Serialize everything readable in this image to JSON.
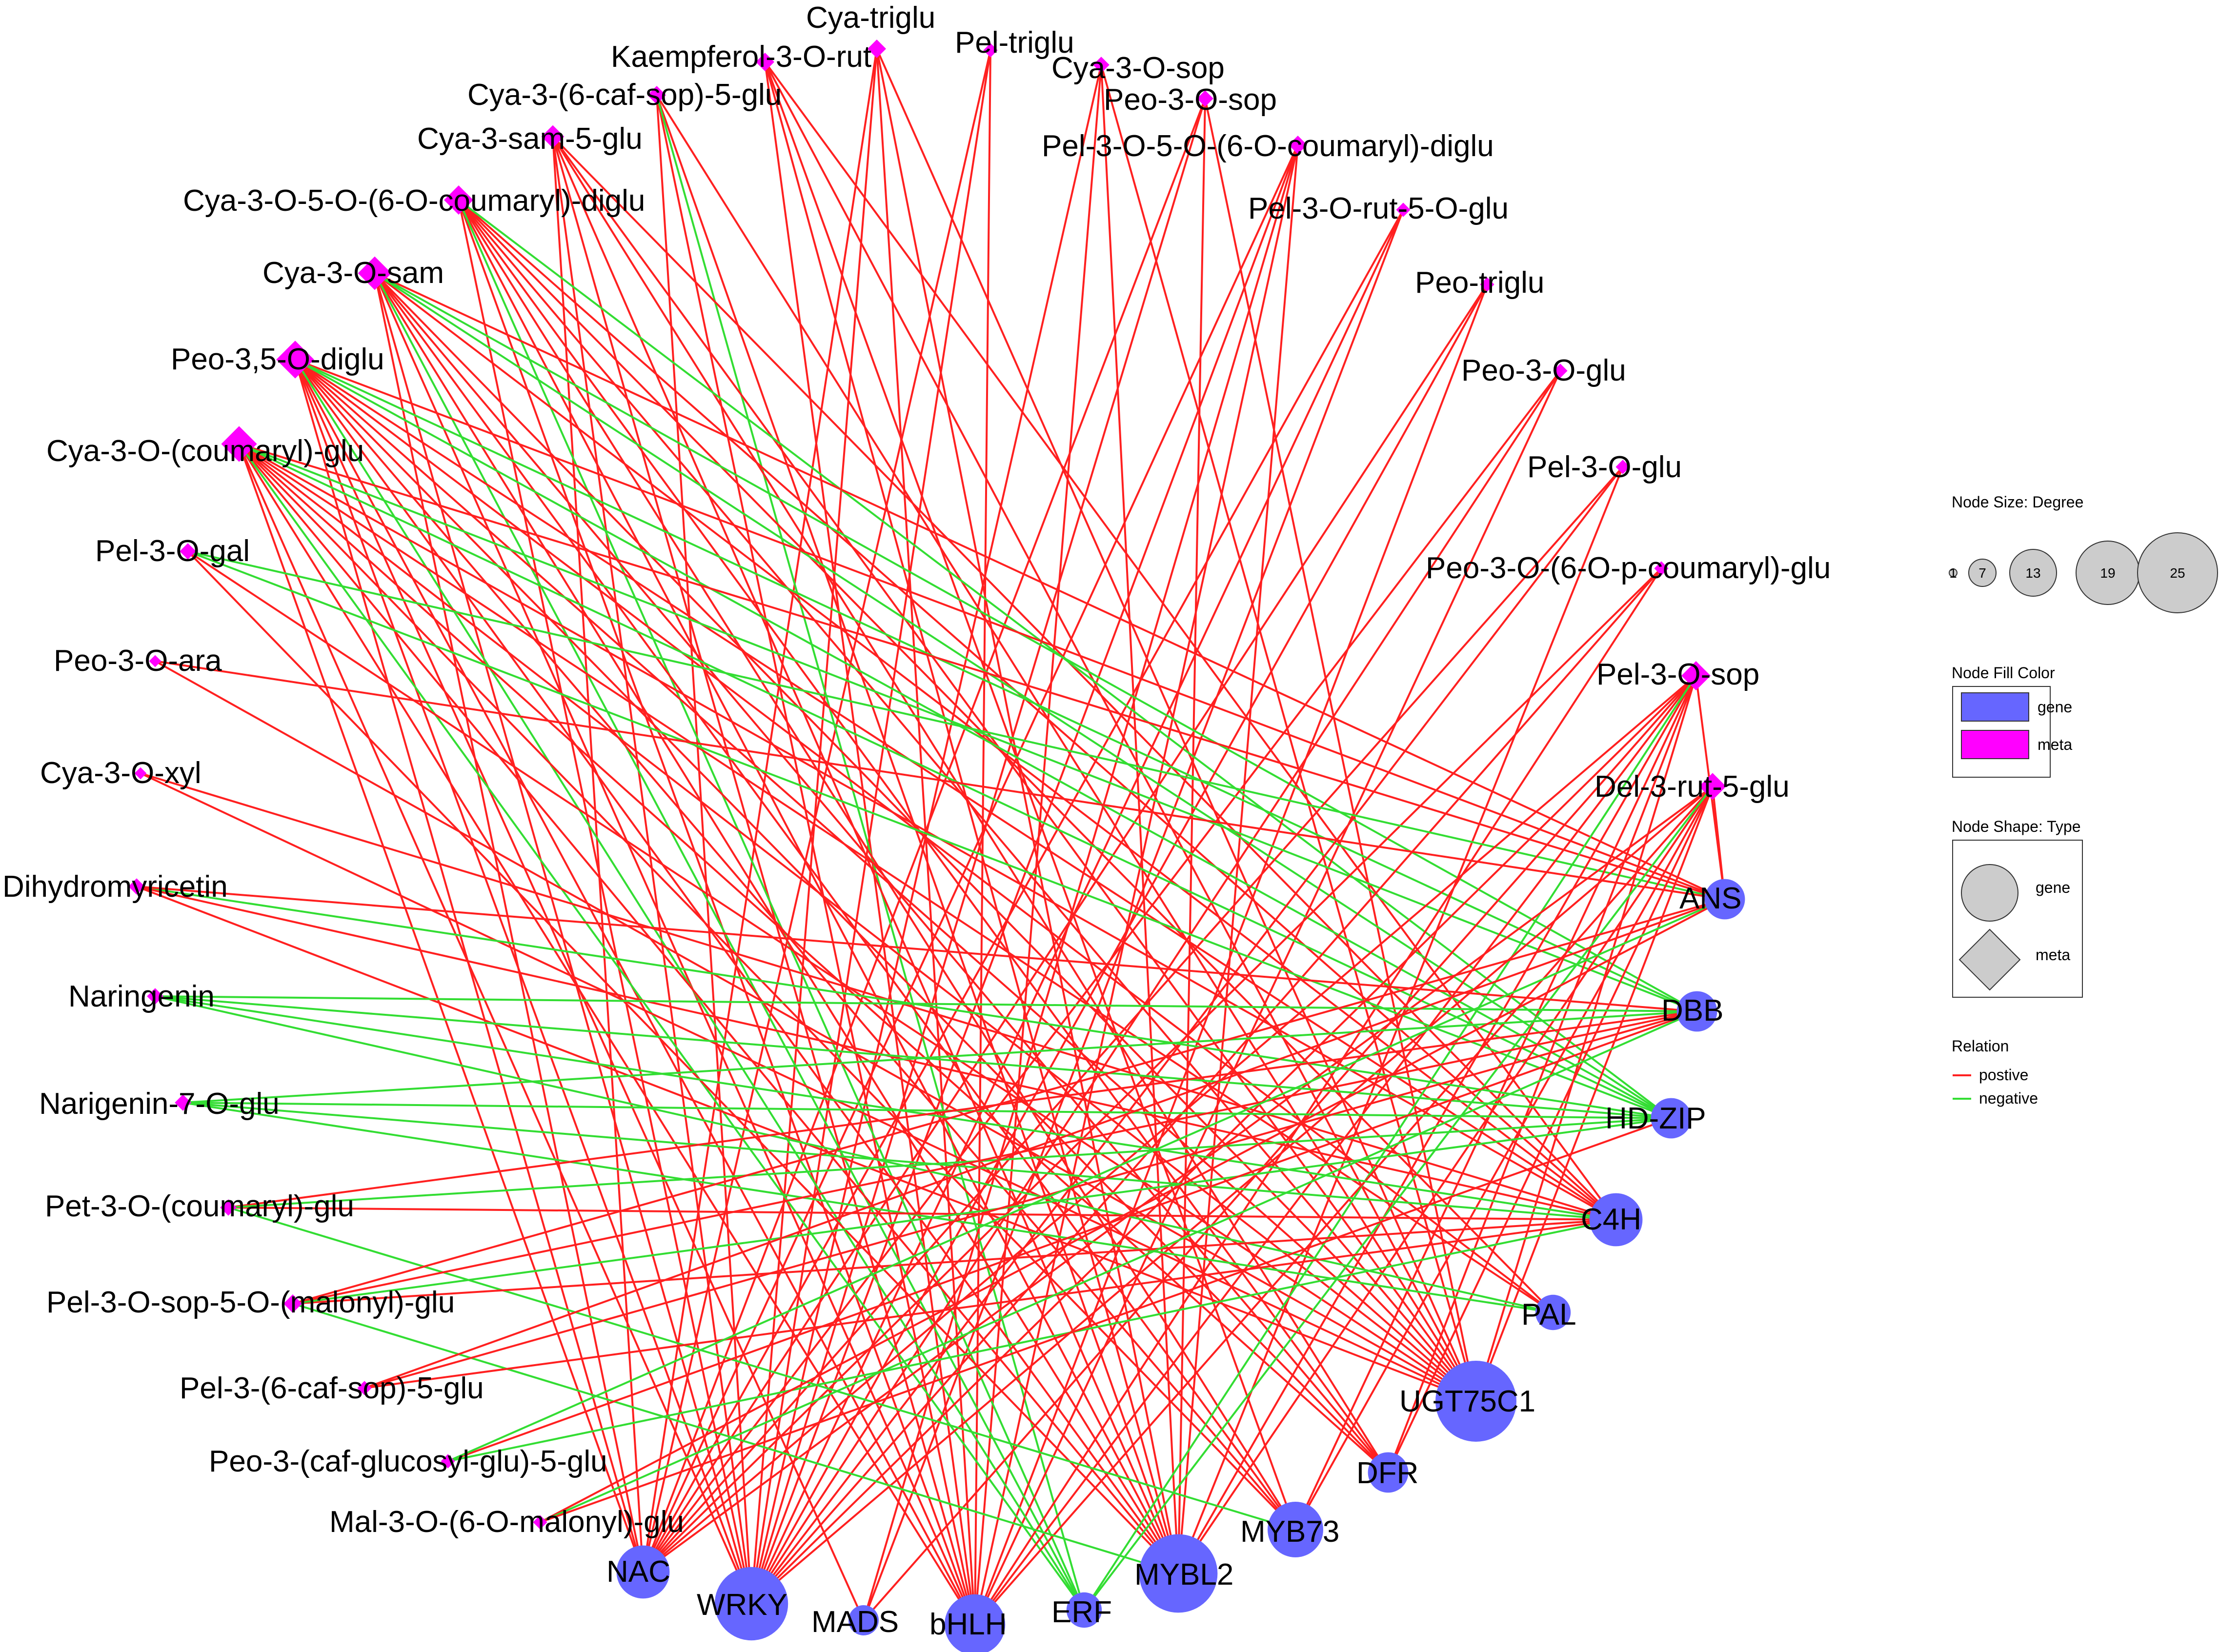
{
  "colors": {
    "gene": "#6666ff",
    "meta": "#ff00ff",
    "positive": "#ff2020",
    "negative": "#33dd33",
    "size_circle": "#cccccc"
  },
  "genes": [
    {
      "id": "ANS",
      "label": "ANS",
      "degree": 9
    },
    {
      "id": "DBB",
      "label": "DBB",
      "degree": 9
    },
    {
      "id": "HDZIP",
      "label": "HD-ZIP",
      "degree": 9
    },
    {
      "id": "C4H",
      "label": "C4H",
      "degree": 14
    },
    {
      "id": "PAL",
      "label": "PAL",
      "degree": 7
    },
    {
      "id": "UGT75C1",
      "label": "UGT75C1",
      "degree": 25
    },
    {
      "id": "DFR",
      "label": "DFR",
      "degree": 9
    },
    {
      "id": "MYB73",
      "label": "MYB73",
      "degree": 15
    },
    {
      "id": "MYBL2",
      "label": "MYBL2",
      "degree": 24
    },
    {
      "id": "ERF",
      "label": "ERF",
      "degree": 7
    },
    {
      "id": "bHLH",
      "label": "bHLH",
      "degree": 17
    },
    {
      "id": "MADS",
      "label": "MADS",
      "degree": 5
    },
    {
      "id": "WRKY",
      "label": "WRKY",
      "degree": 22
    },
    {
      "id": "NAC",
      "label": "NAC",
      "degree": 14
    }
  ],
  "metas": [
    {
      "id": "m1",
      "label": "Cya-triglu",
      "degree": 5
    },
    {
      "id": "m2",
      "label": "Kaempferol-3-O-rut",
      "degree": 5
    },
    {
      "id": "m3",
      "label": "Pel-triglu",
      "degree": 3
    },
    {
      "id": "m4",
      "label": "Cya-3-O-sop",
      "degree": 4
    },
    {
      "id": "m5",
      "label": "Peo-3-O-sop",
      "degree": 4
    },
    {
      "id": "m6",
      "label": "Cya-3-(6-caf-sop)-5-glu",
      "degree": 5
    },
    {
      "id": "m7",
      "label": "Pel-3-O-5-O-(6-O-coumaryl)-diglu",
      "degree": 5
    },
    {
      "id": "m8",
      "label": "Cya-3-sam-5-glu",
      "degree": 7
    },
    {
      "id": "m9",
      "label": "Pel-3-O-rut-5-O-glu",
      "degree": 3
    },
    {
      "id": "m10",
      "label": "Cya-3-O-5-O-(6-O-coumaryl)-diglu",
      "degree": 10
    },
    {
      "id": "m11",
      "label": "Peo-triglu",
      "degree": 3
    },
    {
      "id": "m12",
      "label": "Cya-3-O-sam",
      "degree": 12
    },
    {
      "id": "m13",
      "label": "Peo-3-O-glu",
      "degree": 3
    },
    {
      "id": "m14",
      "label": "Peo-3,5-O-diglu",
      "degree": 14
    },
    {
      "id": "m15",
      "label": "Pel-3-O-glu",
      "degree": 3
    },
    {
      "id": "m16",
      "label": "Cya-3-O-(coumaryl)-glu",
      "degree": 13
    },
    {
      "id": "m17",
      "label": "Peo-3-O-(6-O-p-coumaryl)-glu",
      "degree": 3
    },
    {
      "id": "m18",
      "label": "Pel-3-O-gal",
      "degree": 4
    },
    {
      "id": "m19",
      "label": "Pel-3-O-sop",
      "degree": 10
    },
    {
      "id": "m20",
      "label": "Peo-3-O-ara",
      "degree": 2
    },
    {
      "id": "m21",
      "label": "Del-3-rut-5-glu",
      "degree": 9
    },
    {
      "id": "m22",
      "label": "Cya-3-O-xyl",
      "degree": 2
    },
    {
      "id": "m23",
      "label": "Dihydromyricetin",
      "degree": 4
    },
    {
      "id": "m24",
      "label": "Naringenin",
      "degree": 4
    },
    {
      "id": "m25",
      "label": "Narigenin-7-O-glu",
      "degree": 4
    },
    {
      "id": "m26",
      "label": "Pet-3-O-(coumaryl)-glu",
      "degree": 4
    },
    {
      "id": "m27",
      "label": "Pel-3-O-sop-5-O-(malonyl)-glu",
      "degree": 5
    },
    {
      "id": "m28",
      "label": "Pel-3-(6-caf-sop)-5-glu",
      "degree": 3
    },
    {
      "id": "m29",
      "label": "Peo-3-(caf-glucosyl-glu)-5-glu",
      "degree": 3
    },
    {
      "id": "m30",
      "label": "Mal-3-O-(6-O-malonyl)-glu",
      "degree": 3
    }
  ],
  "edges": [
    [
      "m1",
      "bHLH",
      "p"
    ],
    [
      "m1",
      "MYBL2",
      "p"
    ],
    [
      "m1",
      "UGT75C1",
      "p"
    ],
    [
      "m1",
      "WRKY",
      "p"
    ],
    [
      "m1",
      "NAC",
      "p"
    ],
    [
      "m2",
      "bHLH",
      "p"
    ],
    [
      "m2",
      "MYBL2",
      "p"
    ],
    [
      "m2",
      "UGT75C1",
      "p"
    ],
    [
      "m2",
      "MYB73",
      "p"
    ],
    [
      "m2",
      "C4H",
      "p"
    ],
    [
      "m3",
      "bHLH",
      "p"
    ],
    [
      "m3",
      "WRKY",
      "p"
    ],
    [
      "m3",
      "NAC",
      "p"
    ],
    [
      "m4",
      "MYBL2",
      "p"
    ],
    [
      "m4",
      "UGT75C1",
      "p"
    ],
    [
      "m4",
      "WRKY",
      "p"
    ],
    [
      "m4",
      "bHLH",
      "p"
    ],
    [
      "m5",
      "MYBL2",
      "p"
    ],
    [
      "m5",
      "UGT75C1",
      "p"
    ],
    [
      "m5",
      "WRKY",
      "p"
    ],
    [
      "m5",
      "NAC",
      "p"
    ],
    [
      "m6",
      "UGT75C1",
      "p"
    ],
    [
      "m6",
      "MYBL2",
      "p"
    ],
    [
      "m6",
      "bHLH",
      "p"
    ],
    [
      "m6",
      "ERF",
      "n"
    ],
    [
      "m6",
      "WRKY",
      "p"
    ],
    [
      "m7",
      "WRKY",
      "p"
    ],
    [
      "m7",
      "NAC",
      "p"
    ],
    [
      "m7",
      "bHLH",
      "p"
    ],
    [
      "m7",
      "MYBL2",
      "p"
    ],
    [
      "m7",
      "MADS",
      "p"
    ],
    [
      "m8",
      "UGT75C1",
      "p"
    ],
    [
      "m8",
      "MYBL2",
      "p"
    ],
    [
      "m8",
      "bHLH",
      "p"
    ],
    [
      "m8",
      "WRKY",
      "p"
    ],
    [
      "m8",
      "C4H",
      "p"
    ],
    [
      "m8",
      "DFR",
      "p"
    ],
    [
      "m8",
      "NAC",
      "p"
    ],
    [
      "m9",
      "WRKY",
      "p"
    ],
    [
      "m9",
      "NAC",
      "p"
    ],
    [
      "m9",
      "MADS",
      "p"
    ],
    [
      "m10",
      "UGT75C1",
      "p"
    ],
    [
      "m10",
      "MYBL2",
      "p"
    ],
    [
      "m10",
      "MYB73",
      "p"
    ],
    [
      "m10",
      "bHLH",
      "p"
    ],
    [
      "m10",
      "WRKY",
      "p"
    ],
    [
      "m10",
      "C4H",
      "p"
    ],
    [
      "m10",
      "ERF",
      "n"
    ],
    [
      "m10",
      "HDZIP",
      "n"
    ],
    [
      "m10",
      "DFR",
      "p"
    ],
    [
      "m10",
      "PAL",
      "p"
    ],
    [
      "m11",
      "WRKY",
      "p"
    ],
    [
      "m11",
      "NAC",
      "p"
    ],
    [
      "m11",
      "bHLH",
      "p"
    ],
    [
      "m12",
      "UGT75C1",
      "p"
    ],
    [
      "m12",
      "MYBL2",
      "p"
    ],
    [
      "m12",
      "MYB73",
      "p"
    ],
    [
      "m12",
      "bHLH",
      "p"
    ],
    [
      "m12",
      "WRKY",
      "p"
    ],
    [
      "m12",
      "C4H",
      "p"
    ],
    [
      "m12",
      "DFR",
      "p"
    ],
    [
      "m12",
      "ANS",
      "p"
    ],
    [
      "m12",
      "HDZIP",
      "n"
    ],
    [
      "m12",
      "DBB",
      "n"
    ],
    [
      "m12",
      "ERF",
      "n"
    ],
    [
      "m12",
      "NAC",
      "p"
    ],
    [
      "m13",
      "WRKY",
      "p"
    ],
    [
      "m13",
      "NAC",
      "p"
    ],
    [
      "m13",
      "bHLH",
      "p"
    ],
    [
      "m14",
      "UGT75C1",
      "p"
    ],
    [
      "m14",
      "MYBL2",
      "p"
    ],
    [
      "m14",
      "MYB73",
      "p"
    ],
    [
      "m14",
      "bHLH",
      "p"
    ],
    [
      "m14",
      "WRKY",
      "p"
    ],
    [
      "m14",
      "C4H",
      "p"
    ],
    [
      "m14",
      "DFR",
      "p"
    ],
    [
      "m14",
      "ANS",
      "p"
    ],
    [
      "m14",
      "PAL",
      "p"
    ],
    [
      "m14",
      "HDZIP",
      "n"
    ],
    [
      "m14",
      "DBB",
      "n"
    ],
    [
      "m14",
      "ERF",
      "n"
    ],
    [
      "m14",
      "NAC",
      "p"
    ],
    [
      "m14",
      "MADS",
      "p"
    ],
    [
      "m15",
      "WRKY",
      "p"
    ],
    [
      "m15",
      "NAC",
      "p"
    ],
    [
      "m15",
      "MYBL2",
      "p"
    ],
    [
      "m16",
      "UGT75C1",
      "p"
    ],
    [
      "m16",
      "MYBL2",
      "p"
    ],
    [
      "m16",
      "MYB73",
      "p"
    ],
    [
      "m16",
      "bHLH",
      "p"
    ],
    [
      "m16",
      "WRKY",
      "p"
    ],
    [
      "m16",
      "C4H",
      "p"
    ],
    [
      "m16",
      "DFR",
      "p"
    ],
    [
      "m16",
      "ANS",
      "p"
    ],
    [
      "m16",
      "HDZIP",
      "n"
    ],
    [
      "m16",
      "DBB",
      "n"
    ],
    [
      "m16",
      "ERF",
      "n"
    ],
    [
      "m16",
      "NAC",
      "p"
    ],
    [
      "m16",
      "PAL",
      "p"
    ],
    [
      "m17",
      "WRKY",
      "p"
    ],
    [
      "m17",
      "NAC",
      "p"
    ],
    [
      "m17",
      "bHLH",
      "p"
    ],
    [
      "m18",
      "UGT75C1",
      "p"
    ],
    [
      "m18",
      "ANS",
      "n"
    ],
    [
      "m18",
      "HDZIP",
      "n"
    ],
    [
      "m18",
      "MYBL2",
      "p"
    ],
    [
      "m19",
      "UGT75C1",
      "p"
    ],
    [
      "m19",
      "MYBL2",
      "p"
    ],
    [
      "m19",
      "MYB73",
      "p"
    ],
    [
      "m19",
      "bHLH",
      "p"
    ],
    [
      "m19",
      "WRKY",
      "p"
    ],
    [
      "m19",
      "NAC",
      "p"
    ],
    [
      "m19",
      "MADS",
      "p"
    ],
    [
      "m19",
      "ANS",
      "p"
    ],
    [
      "m19",
      "ERF",
      "n"
    ],
    [
      "m19",
      "DFR",
      "p"
    ],
    [
      "m20",
      "ANS",
      "p"
    ],
    [
      "m20",
      "UGT75C1",
      "p"
    ],
    [
      "m21",
      "UGT75C1",
      "p"
    ],
    [
      "m21",
      "MYBL2",
      "p"
    ],
    [
      "m21",
      "MYB73",
      "p"
    ],
    [
      "m21",
      "bHLH",
      "p"
    ],
    [
      "m21",
      "WRKY",
      "p"
    ],
    [
      "m21",
      "NAC",
      "p"
    ],
    [
      "m21",
      "ANS",
      "p"
    ],
    [
      "m21",
      "ERF",
      "n"
    ],
    [
      "m21",
      "DFR",
      "p"
    ],
    [
      "m22",
      "C4H",
      "p"
    ],
    [
      "m22",
      "UGT75C1",
      "p"
    ],
    [
      "m23",
      "HDZIP",
      "n"
    ],
    [
      "m23",
      "C4H",
      "p"
    ],
    [
      "m23",
      "DBB",
      "p"
    ],
    [
      "m23",
      "UGT75C1",
      "p"
    ],
    [
      "m24",
      "DBB",
      "n"
    ],
    [
      "m24",
      "HDZIP",
      "n"
    ],
    [
      "m24",
      "C4H",
      "n"
    ],
    [
      "m24",
      "PAL",
      "n"
    ],
    [
      "m25",
      "DBB",
      "n"
    ],
    [
      "m25",
      "HDZIP",
      "n"
    ],
    [
      "m25",
      "C4H",
      "n"
    ],
    [
      "m25",
      "PAL",
      "n"
    ],
    [
      "m26",
      "C4H",
      "p"
    ],
    [
      "m26",
      "DBB",
      "p"
    ],
    [
      "m26",
      "HDZIP",
      "n"
    ],
    [
      "m26",
      "MYB73",
      "n"
    ],
    [
      "m27",
      "C4H",
      "p"
    ],
    [
      "m27",
      "DBB",
      "p"
    ],
    [
      "m27",
      "HDZIP",
      "n"
    ],
    [
      "m27",
      "ANS",
      "p"
    ],
    [
      "m27",
      "MYBL2",
      "n"
    ],
    [
      "m28",
      "C4H",
      "p"
    ],
    [
      "m28",
      "DBB",
      "p"
    ],
    [
      "m28",
      "ANS",
      "p"
    ],
    [
      "m29",
      "DBB",
      "p"
    ],
    [
      "m29",
      "C4H",
      "n"
    ],
    [
      "m29",
      "ANS",
      "n"
    ],
    [
      "m30",
      "ANS",
      "p"
    ],
    [
      "m30",
      "DBB",
      "n"
    ],
    [
      "m30",
      "HDZIP",
      "p"
    ]
  ],
  "legend": {
    "size_title": "Node Size:  Degree",
    "size_values": [
      "1",
      "7",
      "13",
      "19",
      "25"
    ],
    "fill_title": "Node Fill Color",
    "fill_items": [
      {
        "label": "gene",
        "color": "#6666ff"
      },
      {
        "label": "meta",
        "color": "#ff00ff"
      }
    ],
    "shape_title": "Node Shape:  Type",
    "shape_items": [
      "gene",
      "meta"
    ],
    "relation_title": "Relation",
    "relation_items": [
      {
        "label": "postive",
        "color": "#ff2020"
      },
      {
        "label": "negative",
        "color": "#33dd33"
      }
    ]
  }
}
